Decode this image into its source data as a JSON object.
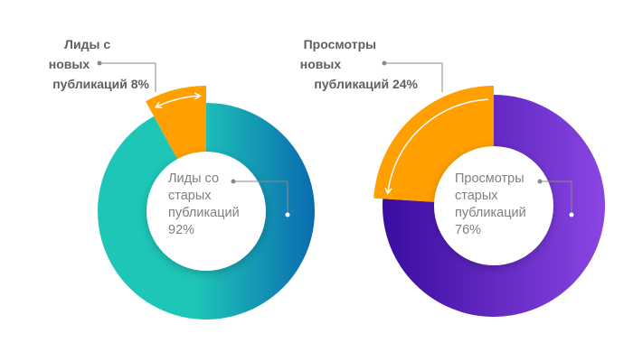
{
  "chart_data": [
    {
      "type": "pie",
      "variant": "donut",
      "slices": [
        {
          "label_lines": [
            "Лиды со",
            "старых",
            "публикаций",
            "92%"
          ],
          "value": 92,
          "color": "#1ec6b8"
        },
        {
          "label_lines": [
            "Лиды с",
            "новых",
            "публикаций 8%"
          ],
          "value": 8,
          "color": "#ff9f00"
        }
      ],
      "colors": {
        "gradient_start": "#1ec6b8",
        "gradient_end": "#0a6bb0",
        "highlight": "#ff9f00"
      }
    },
    {
      "type": "pie",
      "variant": "donut",
      "slices": [
        {
          "label_lines": [
            "Просмотры",
            "старых",
            "публикаций",
            "76%"
          ],
          "value": 76,
          "color": "#7a3fd4"
        },
        {
          "label_lines": [
            "Просмотры",
            "новых",
            "публикаций 24%"
          ],
          "value": 24,
          "color": "#ff9f00"
        }
      ],
      "colors": {
        "gradient_start": "#3a0ca0",
        "gradient_end": "#8a45e2",
        "highlight": "#ff9f00"
      }
    }
  ]
}
